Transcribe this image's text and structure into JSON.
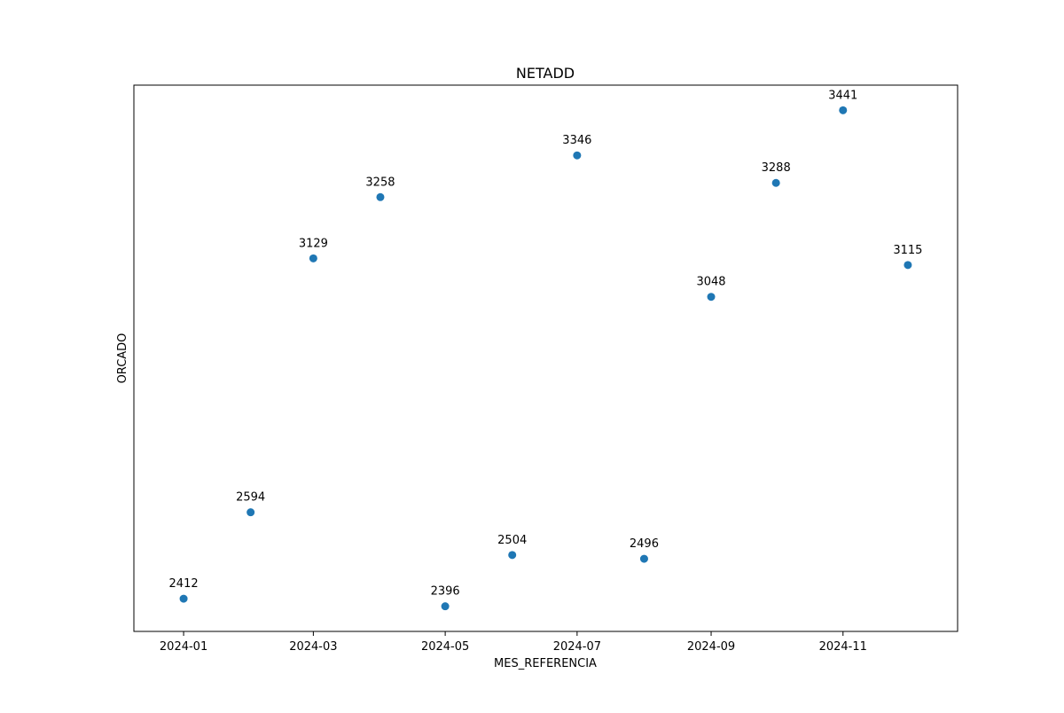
{
  "chart_data": {
    "type": "scatter",
    "title": "NETADD",
    "xlabel": "MES_REFERENCIA",
    "ylabel": "ORCADO",
    "x": [
      "2024-01-01",
      "2024-02-01",
      "2024-03-01",
      "2024-04-01",
      "2024-05-01",
      "2024-06-01",
      "2024-07-01",
      "2024-08-01",
      "2024-09-01",
      "2024-10-01",
      "2024-11-01",
      "2024-12-01"
    ],
    "values": [
      2412,
      2594,
      3129,
      3258,
      2396,
      2504,
      3346,
      2496,
      3048,
      3288,
      3441,
      3115
    ],
    "data_labels": [
      "2412",
      "2594",
      "3129",
      "3258",
      "2396",
      "2504",
      "3346",
      "2496",
      "3048",
      "3288",
      "3441",
      "3115"
    ],
    "x_ticks": [
      {
        "value": "2024-01-01",
        "label": "2024-01"
      },
      {
        "value": "2024-03-01",
        "label": "2024-03"
      },
      {
        "value": "2024-05-01",
        "label": "2024-05"
      },
      {
        "value": "2024-07-01",
        "label": "2024-07"
      },
      {
        "value": "2024-09-01",
        "label": "2024-09"
      },
      {
        "value": "2024-11-01",
        "label": "2024-11"
      }
    ],
    "xlim": [
      "2023-12-09",
      "2024-12-24"
    ],
    "ylim": [
      2343,
      3494
    ],
    "y_ticks_shown": false,
    "grid": false,
    "legend": "none",
    "marker_color": "#1f77b4"
  }
}
